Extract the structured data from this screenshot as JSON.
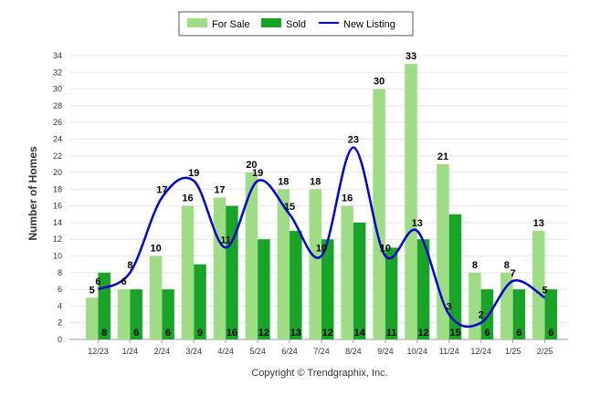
{
  "chart_data": {
    "type": "bar",
    "categories": [
      "12/23",
      "1/24",
      "2/24",
      "3/24",
      "4/24",
      "5/24",
      "6/24",
      "7/24",
      "8/24",
      "9/24",
      "10/24",
      "11/24",
      "12/24",
      "1/25",
      "2/25"
    ],
    "series": [
      {
        "name": "For Sale",
        "type": "bar",
        "color": "#9fdc86",
        "values": [
          5,
          6,
          10,
          16,
          17,
          20,
          18,
          18,
          16,
          30,
          33,
          21,
          8,
          8,
          13
        ]
      },
      {
        "name": "Sold",
        "type": "bar",
        "color": "#1aa329",
        "values": [
          8,
          6,
          6,
          9,
          16,
          12,
          13,
          12,
          14,
          11,
          12,
          15,
          6,
          6,
          6
        ]
      },
      {
        "name": "New Listing",
        "type": "line",
        "color": "#0000cc",
        "values": [
          6,
          8,
          17,
          19,
          11,
          19,
          15,
          10,
          23,
          10,
          13,
          3,
          2,
          7,
          5
        ]
      }
    ],
    "ylabel": "Number of Homes",
    "xlabel": "",
    "ylim": [
      0,
      34
    ],
    "yticks": [
      0,
      2,
      4,
      6,
      8,
      10,
      12,
      14,
      16,
      18,
      20,
      22,
      24,
      26,
      28,
      30,
      32,
      34
    ],
    "grid": true,
    "legend_position": "top-center"
  },
  "credit": "Copyright © Trendgraphix, Inc."
}
